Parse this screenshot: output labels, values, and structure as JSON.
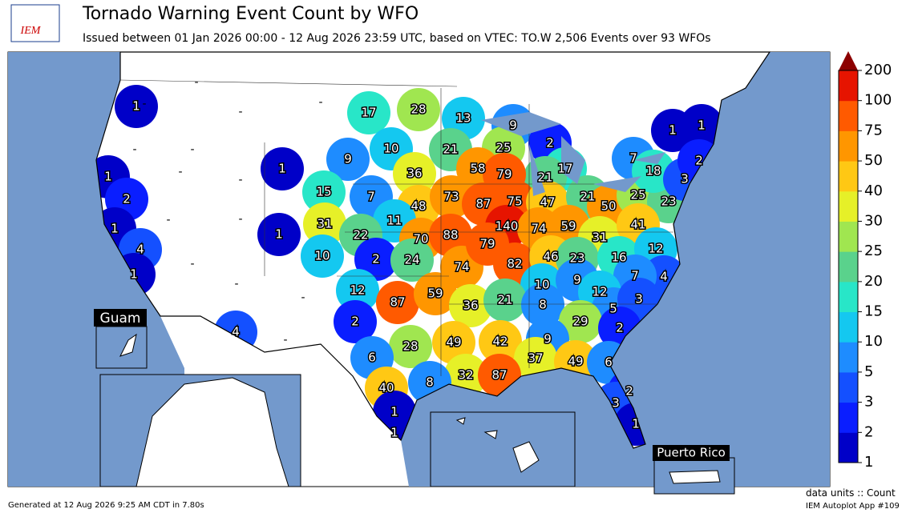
{
  "header": {
    "logo": "IEM",
    "title": "Tornado Warning Event Count by WFO",
    "subtitle": "Issued between 01 Jan 2026 00:00 - 12 Aug 2026 23:59 UTC, based on VTEC: TO.W   2,506 Events over 93 WFOs"
  },
  "map": {
    "counts": [
      1,
      17,
      28,
      13,
      9,
      2,
      17,
      21,
      25,
      21,
      10,
      9,
      1,
      36,
      58,
      79,
      1,
      2,
      15,
      7,
      48,
      73,
      87,
      75,
      47,
      21,
      50,
      25,
      23,
      7,
      18,
      3,
      1,
      1,
      2,
      11,
      31,
      1,
      22,
      70,
      88,
      140,
      74,
      59,
      31,
      41,
      1,
      4,
      1,
      10,
      2,
      24,
      74,
      79,
      82,
      46,
      23,
      16,
      12,
      4,
      7,
      10,
      9,
      12,
      5,
      3,
      12,
      87,
      59,
      36,
      21,
      8,
      4,
      2,
      29,
      2,
      28,
      49,
      42,
      9,
      37,
      49,
      6,
      6,
      32,
      87,
      2,
      3,
      1,
      40,
      8,
      1,
      1
    ],
    "no_event": [
      "-",
      "-",
      "-",
      "-",
      "-",
      "-",
      "-",
      "-",
      "-",
      "-",
      "-",
      "-",
      "-",
      "-"
    ],
    "insets": [
      "Guam",
      "Puerto Rico"
    ]
  },
  "colorbar": {
    "ticks": [
      1,
      2,
      3,
      5,
      10,
      15,
      20,
      25,
      30,
      40,
      50,
      75,
      100,
      200
    ],
    "colors": [
      "#0000c8",
      "#0a1eff",
      "#1450ff",
      "#1e8cff",
      "#14c8f0",
      "#28e6c8",
      "#5ad28c",
      "#a0e650",
      "#e6f028",
      "#ffc814",
      "#ff9600",
      "#ff5a00",
      "#e61400"
    ],
    "over_color": "#8c0000"
  },
  "footer": {
    "generated": "Generated at 12 Aug 2026 9:25 AM CDT in 7.80s",
    "units": "data units :: Count",
    "app": "IEM Autoplot App #109"
  }
}
